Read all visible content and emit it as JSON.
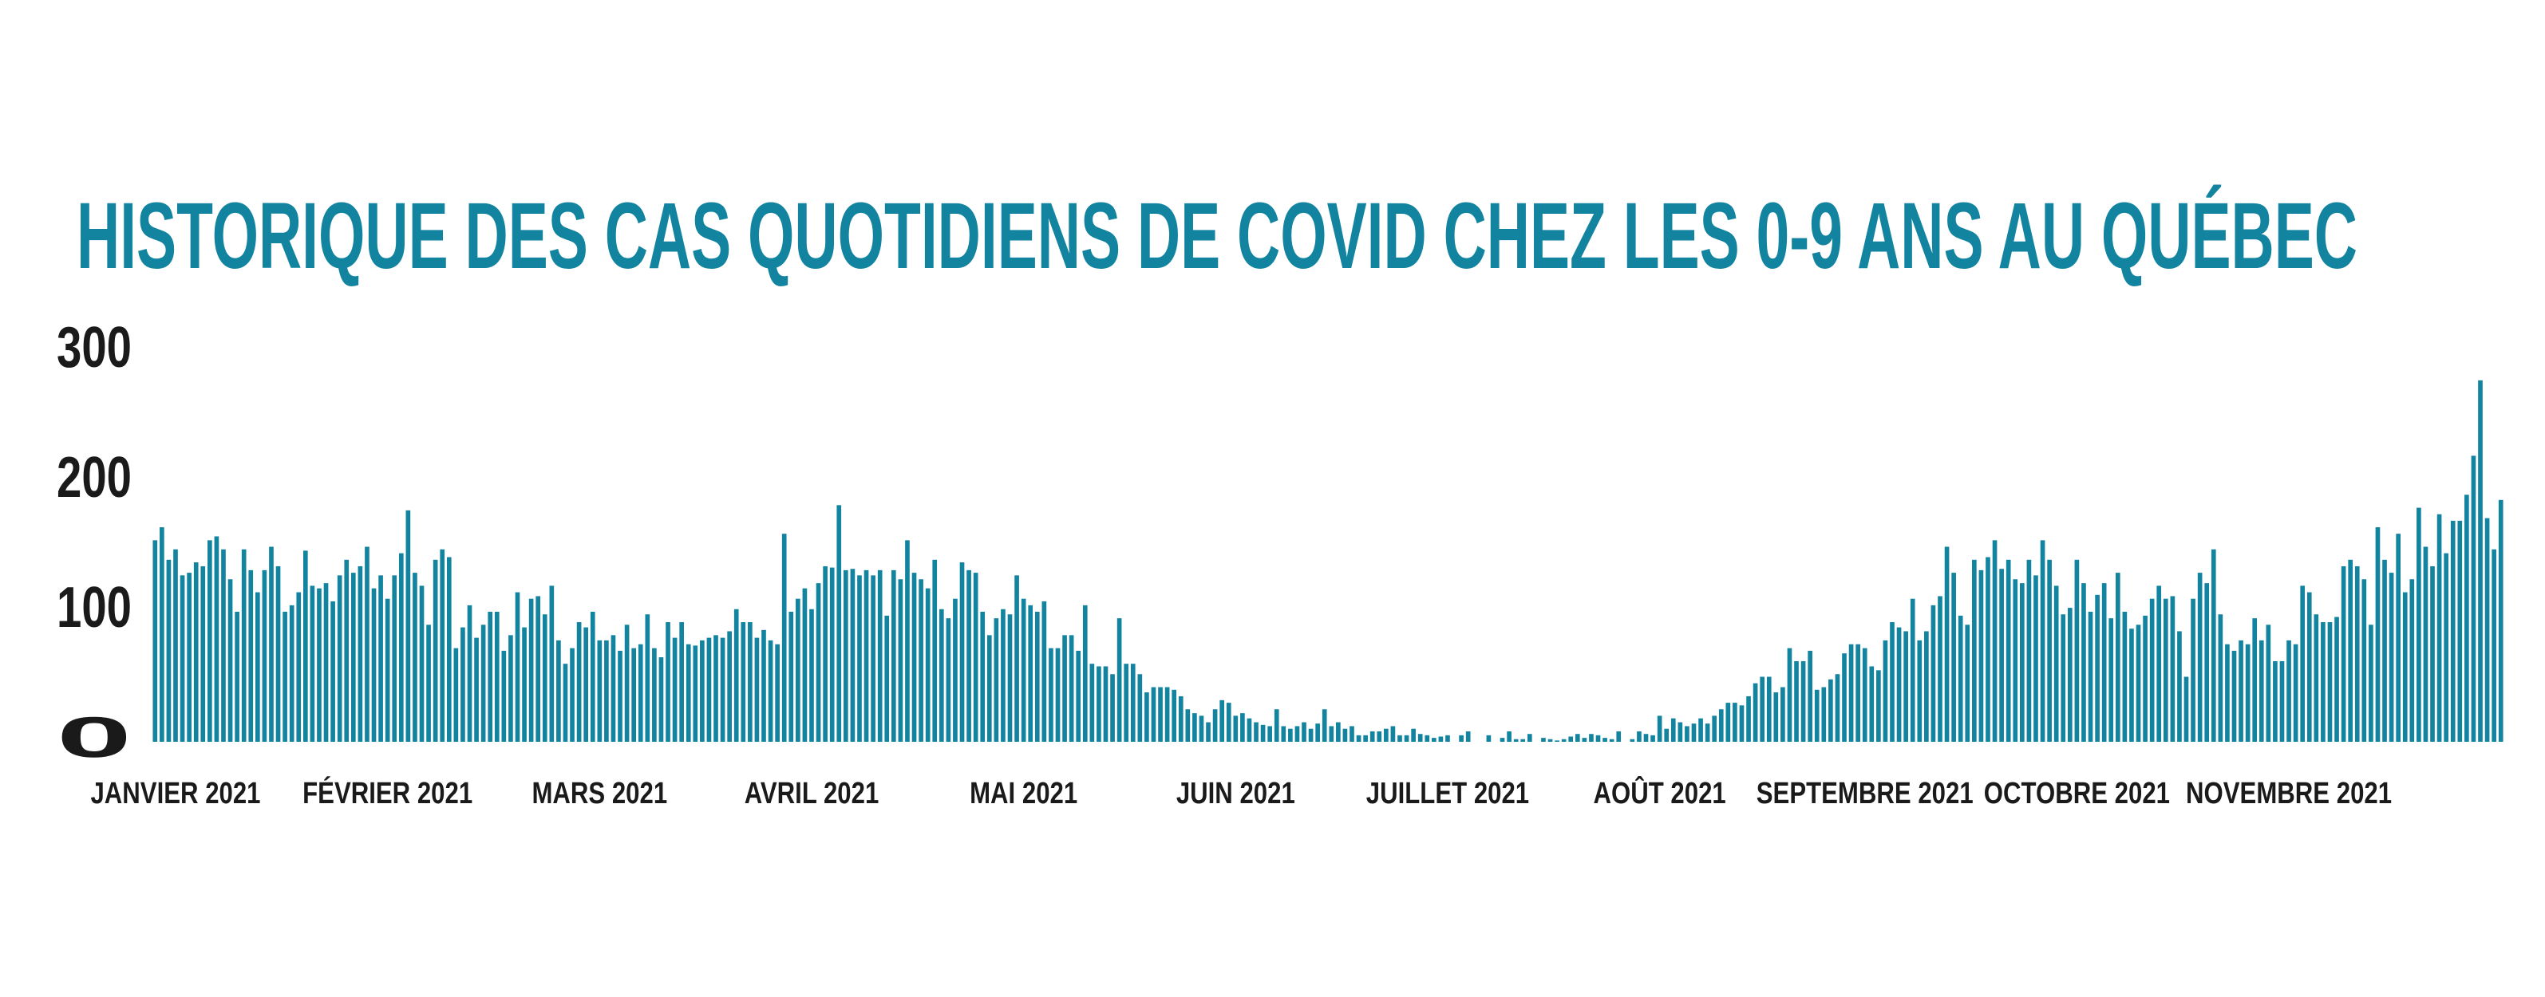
{
  "chart_data": {
    "type": "bar",
    "title": "HISTORIQUE DES CAS QUOTIDIENS DE COVID CHEZ LES 0-9 ANS AU QUÉBEC",
    "color": "#1284a0",
    "ylim": [
      0,
      300
    ],
    "yticks": [
      0,
      100,
      200,
      300
    ],
    "grid": false,
    "categories": [
      null,
      null,
      null,
      "JANVIER 2021",
      null,
      null,
      null,
      null,
      null,
      null,
      null,
      null,
      null,
      null,
      null,
      null,
      null,
      null,
      null,
      null,
      null,
      null,
      null,
      null,
      null,
      null,
      null,
      null,
      null,
      null,
      null,
      null,
      null,
      null,
      "FÉVRIER 2021",
      null,
      null,
      null,
      null,
      null,
      null,
      null,
      null,
      null,
      null,
      null,
      null,
      null,
      null,
      null,
      null,
      null,
      null,
      null,
      null,
      null,
      null,
      null,
      null,
      null,
      null,
      null,
      null,
      null,
      null,
      "MARS 2021",
      null,
      null,
      null,
      null,
      null,
      null,
      null,
      null,
      null,
      null,
      null,
      null,
      null,
      null,
      null,
      null,
      null,
      null,
      null,
      null,
      null,
      null,
      null,
      null,
      null,
      null,
      null,
      null,
      null,
      null,
      "AVRIL 2021",
      null,
      null,
      null,
      null,
      null,
      null,
      null,
      null,
      null,
      null,
      null,
      null,
      null,
      null,
      null,
      null,
      null,
      null,
      null,
      null,
      null,
      null,
      null,
      null,
      null,
      null,
      null,
      null,
      null,
      null,
      "MAI 2021",
      null,
      null,
      null,
      null,
      null,
      null,
      null,
      null,
      null,
      null,
      null,
      null,
      null,
      null,
      null,
      null,
      null,
      null,
      null,
      null,
      null,
      null,
      null,
      null,
      null,
      null,
      null,
      null,
      null,
      null,
      "JUIN 2021",
      null,
      null,
      null,
      null,
      null,
      null,
      null,
      null,
      null,
      null,
      null,
      null,
      null,
      null,
      null,
      null,
      null,
      null,
      null,
      null,
      null,
      null,
      null,
      null,
      null,
      null,
      null,
      null,
      null,
      null,
      "JUILLET 2021",
      null,
      null,
      null,
      null,
      null,
      null,
      null,
      null,
      null,
      null,
      null,
      null,
      null,
      null,
      null,
      null,
      null,
      null,
      null,
      null,
      null,
      null,
      null,
      null,
      null,
      null,
      null,
      null,
      null,
      null,
      "AOÛT 2021",
      null,
      null,
      null,
      null,
      null,
      null,
      null,
      null,
      null,
      null,
      null,
      null,
      null,
      null,
      null,
      null,
      null,
      null,
      null,
      null,
      null,
      null,
      null,
      null,
      null,
      null,
      null,
      null,
      null,
      "SEPTEMBRE 2021",
      null,
      null,
      null,
      null,
      null,
      null,
      null,
      null,
      null,
      null,
      null,
      null,
      null,
      null,
      null,
      null,
      null,
      null,
      null,
      null,
      null,
      null,
      null,
      null,
      null,
      null,
      null,
      null,
      null,
      null,
      "OCTOBRE 2021",
      null,
      null,
      null,
      null,
      null,
      null,
      null,
      null,
      null,
      null,
      null,
      null,
      null,
      null,
      null,
      null,
      null,
      null,
      null,
      null,
      null,
      null,
      null,
      null,
      null,
      null,
      null,
      null,
      null,
      null,
      "NOVEMBRE 2021",
      null,
      null,
      null,
      null,
      null,
      null,
      null,
      null,
      null,
      null,
      null,
      null,
      null,
      null,
      null,
      null,
      null,
      null,
      null,
      null,
      null,
      null,
      null,
      null,
      null,
      null,
      null,
      null,
      null,
      null,
      null
    ],
    "values": [
      155,
      165,
      140,
      148,
      128,
      130,
      138,
      135,
      155,
      158,
      148,
      125,
      100,
      148,
      132,
      115,
      132,
      150,
      135,
      100,
      105,
      115,
      147,
      120,
      118,
      122,
      108,
      128,
      140,
      130,
      135,
      150,
      118,
      128,
      110,
      128,
      145,
      178,
      130,
      120,
      90,
      140,
      148,
      142,
      72,
      88,
      105,
      80,
      90,
      100,
      100,
      70,
      82,
      115,
      88,
      110,
      112,
      98,
      120,
      78,
      60,
      72,
      92,
      88,
      100,
      78,
      78,
      82,
      70,
      90,
      72,
      75,
      98,
      72,
      65,
      92,
      80,
      92,
      75,
      74,
      78,
      80,
      82,
      80,
      85,
      102,
      92,
      92,
      80,
      86,
      78,
      75,
      160,
      100,
      110,
      118,
      102,
      122,
      135,
      134,
      182,
      132,
      133,
      128,
      132,
      128,
      132,
      97,
      132,
      125,
      155,
      130,
      125,
      118,
      140,
      102,
      95,
      110,
      138,
      132,
      130,
      100,
      82,
      95,
      102,
      98,
      128,
      110,
      105,
      100,
      108,
      72,
      72,
      82,
      82,
      70,
      105,
      60,
      58,
      58,
      52,
      95,
      60,
      60,
      52,
      38,
      42,
      42,
      42,
      40,
      35,
      25,
      22,
      20,
      15,
      25,
      32,
      30,
      20,
      22,
      18,
      15,
      13,
      12,
      25,
      12,
      10,
      12,
      15,
      10,
      14,
      25,
      12,
      15,
      10,
      12,
      5,
      5,
      8,
      8,
      10,
      12,
      5,
      5,
      10,
      6,
      5,
      3,
      4,
      5,
      0,
      5,
      8,
      0,
      0,
      5,
      0,
      3,
      8,
      2,
      2,
      6,
      0,
      3,
      2,
      1,
      2,
      4,
      6,
      3,
      6,
      5,
      3,
      2,
      8,
      0,
      2,
      8,
      6,
      5,
      20,
      10,
      18,
      15,
      12,
      14,
      18,
      14,
      20,
      25,
      30,
      30,
      28,
      35,
      45,
      50,
      50,
      38,
      42,
      72,
      62,
      62,
      70,
      40,
      42,
      48,
      52,
      68,
      75,
      75,
      72,
      58,
      55,
      78,
      92,
      88,
      85,
      110,
      78,
      85,
      105,
      112,
      150,
      130,
      97,
      90,
      140,
      132,
      142,
      155,
      133,
      140,
      125,
      122,
      140,
      128,
      155,
      140,
      120,
      98,
      103,
      140,
      122,
      100,
      113,
      122,
      95,
      130,
      100,
      87,
      90,
      97,
      110,
      120,
      110,
      112,
      85,
      50,
      110,
      130,
      122,
      148,
      98,
      75,
      70,
      78,
      75,
      95,
      78,
      90,
      62,
      62,
      78,
      75,
      120,
      115,
      98,
      92,
      92,
      96,
      135,
      140,
      135,
      125,
      90,
      165,
      140,
      130,
      160,
      115,
      125,
      180,
      150,
      135,
      175,
      145,
      170,
      170,
      190,
      220,
      278,
      172,
      148,
      186
    ]
  }
}
